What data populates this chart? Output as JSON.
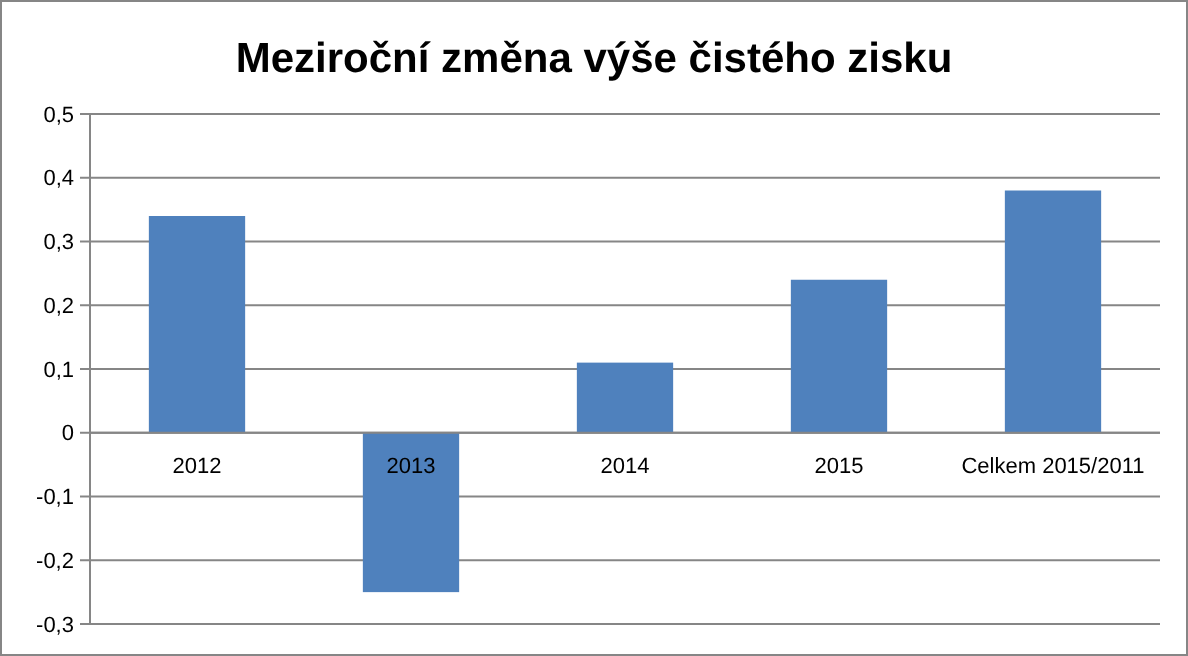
{
  "chart_data": {
    "type": "bar",
    "title": "Meziroční změna výše čistého zisku",
    "categories": [
      "2012",
      "2013",
      "2014",
      "2015",
      "Celkem 2015/2011"
    ],
    "values": [
      0.34,
      -0.25,
      0.11,
      0.24,
      0.38
    ],
    "color": "#4f81bd",
    "ylim": [
      -0.3,
      0.5
    ],
    "yticks": [
      {
        "value": -0.3,
        "label": "-0,3"
      },
      {
        "value": -0.2,
        "label": "-0,2"
      },
      {
        "value": -0.1,
        "label": "-0,1"
      },
      {
        "value": 0,
        "label": "0"
      },
      {
        "value": 0.1,
        "label": "0,1"
      },
      {
        "value": 0.2,
        "label": "0,2"
      },
      {
        "value": 0.3,
        "label": "0,3"
      },
      {
        "value": 0.4,
        "label": "0,4"
      },
      {
        "value": 0.5,
        "label": "0,5"
      }
    ],
    "grid": true
  }
}
